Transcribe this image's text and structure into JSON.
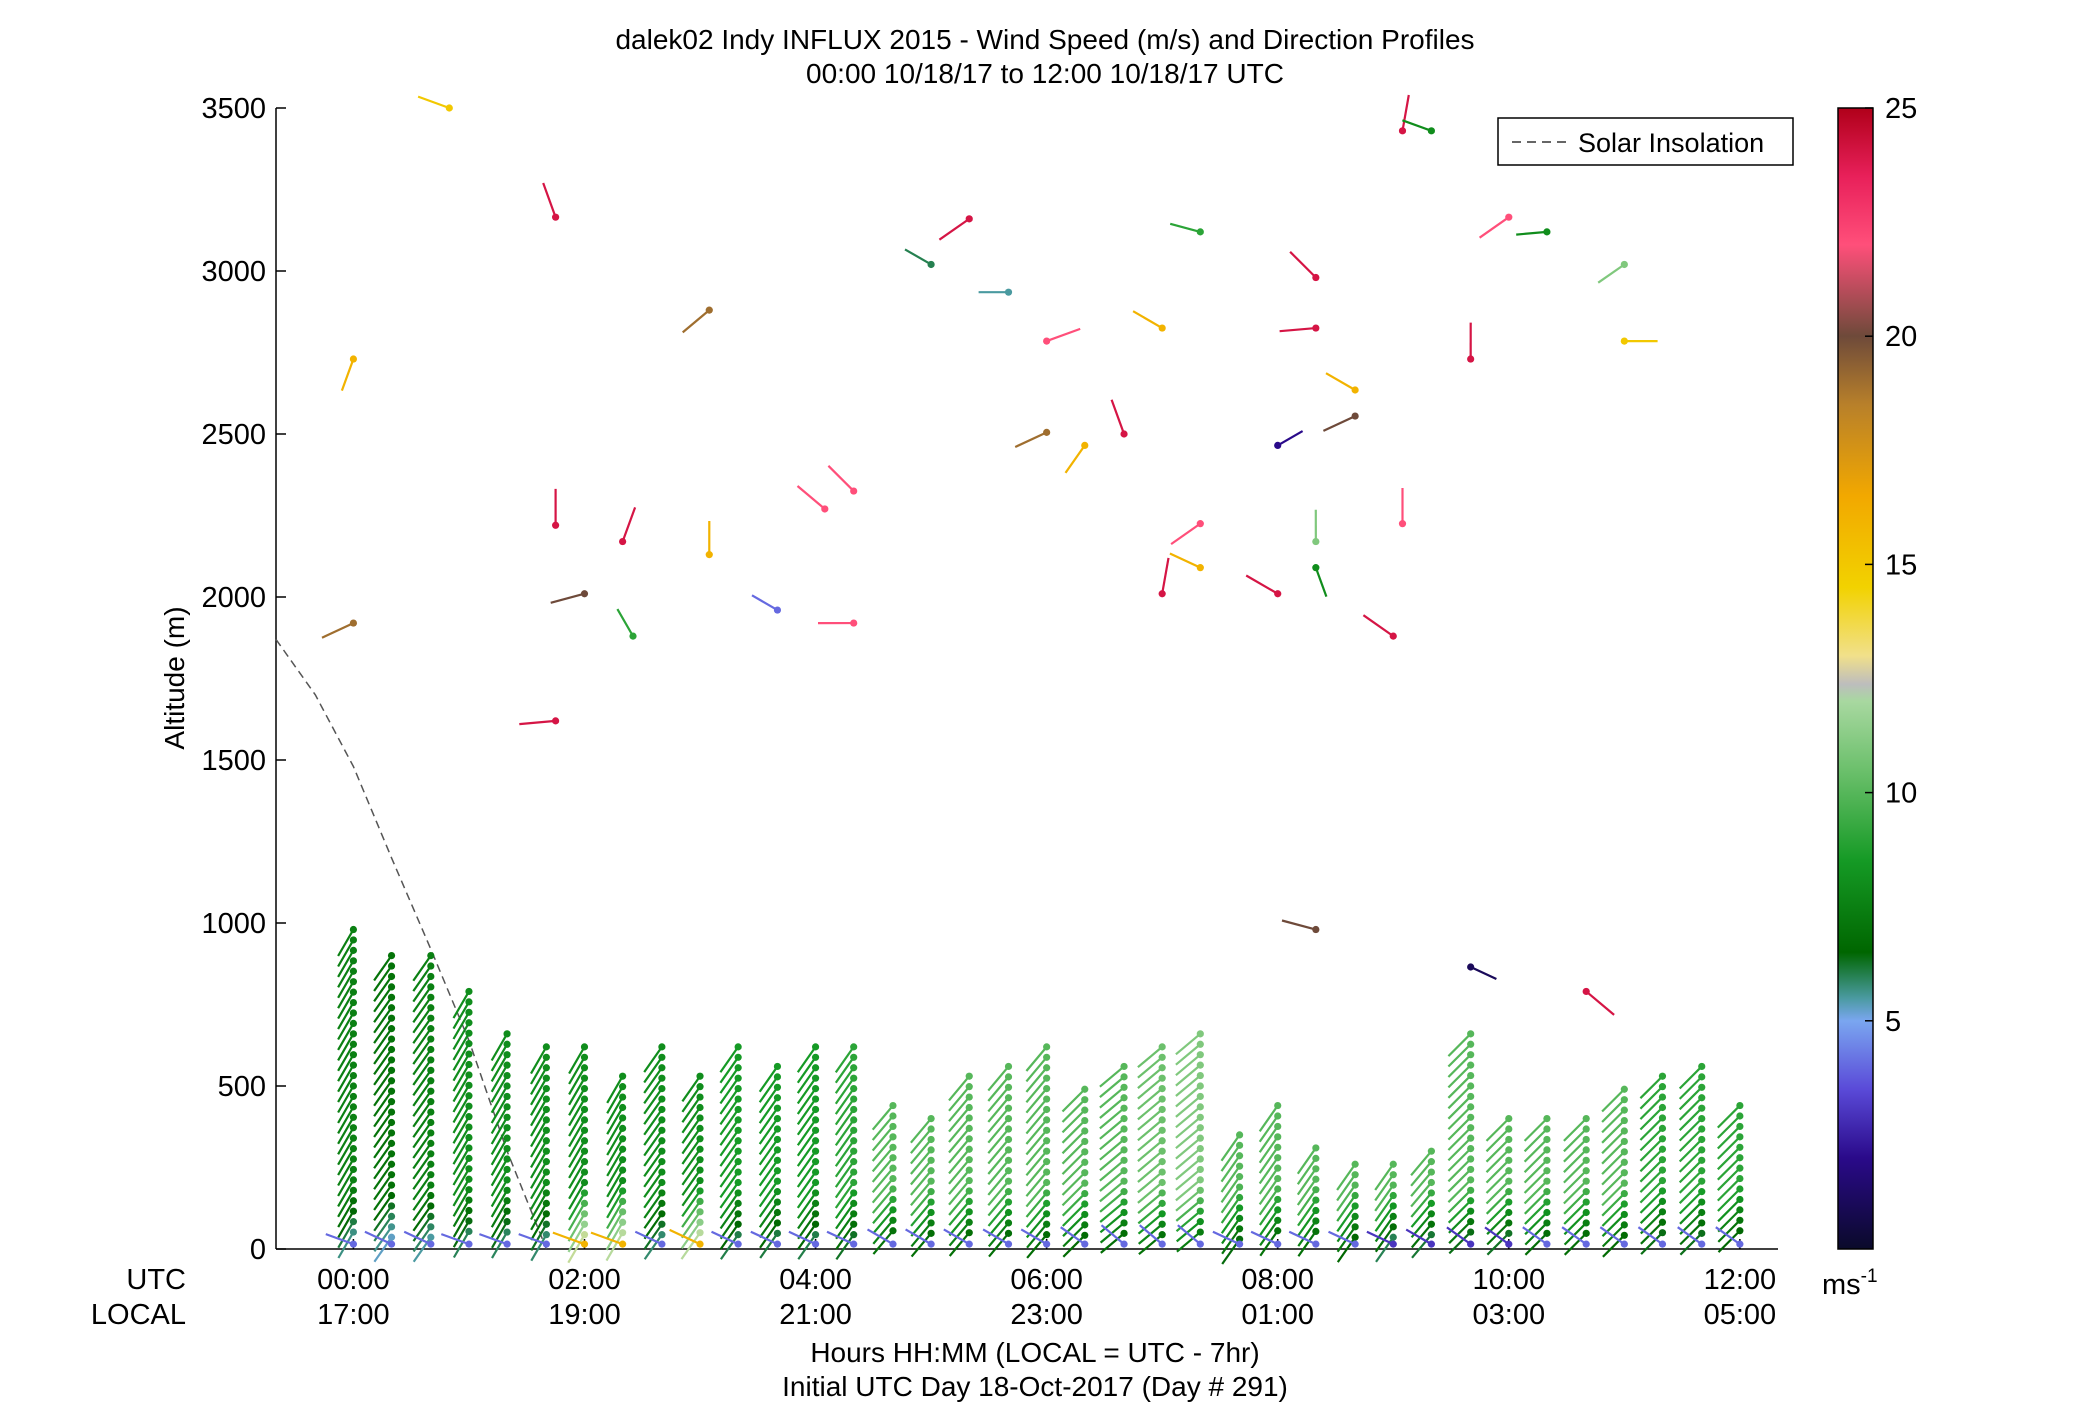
{
  "chart_data": {
    "type": "scatter",
    "title": "dalek02 Indy INFLUX 2015 - Wind Speed (m/s) and Direction Profiles",
    "subtitle": "00:00 10/18/17 to 12:00 10/18/17  UTC",
    "ylabel": "Altitude (m)",
    "xlabel": "Hours HH:MM  (LOCAL = UTC - 7hr)",
    "xlabel2": "Initial UTC Day 18-Oct-2017 (Day # 291)",
    "ylim": [
      0,
      3500
    ],
    "xlim_hours_utc": [
      -0.67,
      12.33
    ],
    "yticks": [
      0,
      500,
      1000,
      1500,
      2000,
      2500,
      3000,
      3500
    ],
    "xtick_row_labels": [
      "UTC",
      "LOCAL"
    ],
    "xticks_utc": [
      "00:00",
      "02:00",
      "04:00",
      "06:00",
      "08:00",
      "10:00",
      "12:00"
    ],
    "xticks_local": [
      "17:00",
      "19:00",
      "21:00",
      "23:00",
      "01:00",
      "03:00",
      "05:00"
    ],
    "xticks_hours": [
      0,
      2,
      4,
      6,
      8,
      10,
      12
    ],
    "legend": {
      "label": "Solar Insolation",
      "position": "top-right"
    },
    "colorbar": {
      "range": [
        0,
        25
      ],
      "ticks": [
        5,
        10,
        15,
        20,
        25
      ],
      "unit": "ms",
      "unit_exponent": "-1"
    },
    "solar_insolation": {
      "x": [
        -0.67,
        -0.33,
        0.0,
        0.33,
        0.67,
        1.0,
        1.33,
        1.67
      ],
      "y": [
        1870,
        1700,
        1480,
        1200,
        920,
        640,
        300,
        0
      ]
    },
    "series": [
      {
        "hour": 0.0,
        "speed": 7.5,
        "direction": 210,
        "top": 980,
        "spacing": 32,
        "surface_speed": 4
      },
      {
        "hour": 0.33,
        "speed": 7,
        "direction": 215,
        "top": 900,
        "spacing": 32,
        "surface_speed": 4
      },
      {
        "hour": 0.67,
        "speed": 7.5,
        "direction": 215,
        "top": 900,
        "spacing": 32,
        "surface_speed": 4
      },
      {
        "hour": 1.0,
        "speed": 8,
        "direction": 210,
        "top": 790,
        "spacing": 32,
        "surface_speed": 4
      },
      {
        "hour": 1.33,
        "speed": 8,
        "direction": 210,
        "top": 660,
        "spacing": 32,
        "surface_speed": 4
      },
      {
        "hour": 1.67,
        "speed": 8,
        "direction": 210,
        "top": 620,
        "spacing": 32,
        "surface_speed": 4
      },
      {
        "hour": 2.0,
        "speed": 8,
        "direction": 210,
        "top": 620,
        "spacing": 32,
        "surface_speed": 16
      },
      {
        "hour": 2.33,
        "speed": 8,
        "direction": 210,
        "top": 530,
        "spacing": 32,
        "surface_speed": 16
      },
      {
        "hour": 2.67,
        "speed": 8,
        "direction": 215,
        "top": 620,
        "spacing": 32,
        "surface_speed": 4
      },
      {
        "hour": 3.0,
        "speed": 8,
        "direction": 215,
        "top": 530,
        "spacing": 32,
        "surface_speed": 16
      },
      {
        "hour": 3.33,
        "speed": 8.5,
        "direction": 215,
        "top": 620,
        "spacing": 32,
        "surface_speed": 4
      },
      {
        "hour": 3.67,
        "speed": 8.5,
        "direction": 215,
        "top": 560,
        "spacing": 32,
        "surface_speed": 4
      },
      {
        "hour": 4.0,
        "speed": 8.5,
        "direction": 215,
        "top": 620,
        "spacing": 32,
        "surface_speed": 4
      },
      {
        "hour": 4.33,
        "speed": 9,
        "direction": 215,
        "top": 620,
        "spacing": 32,
        "surface_speed": 4
      },
      {
        "hour": 4.67,
        "speed": 10,
        "direction": 220,
        "top": 440,
        "spacing": 32,
        "surface_speed": 4
      },
      {
        "hour": 5.0,
        "speed": 10,
        "direction": 220,
        "top": 400,
        "spacing": 32,
        "surface_speed": 4
      },
      {
        "hour": 5.33,
        "speed": 10,
        "direction": 220,
        "top": 530,
        "spacing": 32,
        "surface_speed": 4
      },
      {
        "hour": 5.67,
        "speed": 10,
        "direction": 220,
        "top": 560,
        "spacing": 32,
        "surface_speed": 4
      },
      {
        "hour": 6.0,
        "speed": 10,
        "direction": 220,
        "top": 620,
        "spacing": 32,
        "surface_speed": 4
      },
      {
        "hour": 6.33,
        "speed": 10,
        "direction": 225,
        "top": 490,
        "spacing": 32,
        "surface_speed": 4
      },
      {
        "hour": 6.67,
        "speed": 10,
        "direction": 230,
        "top": 560,
        "spacing": 32,
        "surface_speed": 4
      },
      {
        "hour": 7.0,
        "speed": 10.5,
        "direction": 230,
        "top": 620,
        "spacing": 32,
        "surface_speed": 4
      },
      {
        "hour": 7.33,
        "speed": 11,
        "direction": 230,
        "top": 660,
        "spacing": 32,
        "surface_speed": 4
      },
      {
        "hour": 7.67,
        "speed": 10,
        "direction": 215,
        "top": 350,
        "spacing": 32,
        "surface_speed": 4
      },
      {
        "hour": 8.0,
        "speed": 10,
        "direction": 215,
        "top": 440,
        "spacing": 32,
        "surface_speed": 4
      },
      {
        "hour": 8.33,
        "speed": 10,
        "direction": 215,
        "top": 310,
        "spacing": 32,
        "surface_speed": 4
      },
      {
        "hour": 8.67,
        "speed": 10,
        "direction": 215,
        "top": 260,
        "spacing": 32,
        "surface_speed": 4
      },
      {
        "hour": 9.0,
        "speed": 10,
        "direction": 215,
        "top": 260,
        "spacing": 32,
        "surface_speed": 3
      },
      {
        "hour": 9.33,
        "speed": 10,
        "direction": 220,
        "top": 300,
        "spacing": 32,
        "surface_speed": 3
      },
      {
        "hour": 9.67,
        "speed": 10,
        "direction": 225,
        "top": 660,
        "spacing": 32,
        "surface_speed": 3
      },
      {
        "hour": 10.0,
        "speed": 10,
        "direction": 225,
        "top": 400,
        "spacing": 32,
        "surface_speed": 3
      },
      {
        "hour": 10.33,
        "speed": 10,
        "direction": 225,
        "top": 400,
        "spacing": 32,
        "surface_speed": 4
      },
      {
        "hour": 10.67,
        "speed": 10,
        "direction": 225,
        "top": 400,
        "spacing": 32,
        "surface_speed": 4
      },
      {
        "hour": 11.0,
        "speed": 10,
        "direction": 225,
        "top": 490,
        "spacing": 32,
        "surface_speed": 4
      },
      {
        "hour": 11.33,
        "speed": 9,
        "direction": 225,
        "top": 530,
        "spacing": 32,
        "surface_speed": 4
      },
      {
        "hour": 11.67,
        "speed": 9,
        "direction": 225,
        "top": 560,
        "spacing": 32,
        "surface_speed": 4
      },
      {
        "hour": 12.0,
        "speed": 9,
        "direction": 225,
        "top": 440,
        "spacing": 32,
        "surface_speed": 4
      }
    ],
    "outliers": [
      {
        "x": 0.0,
        "y": 2730,
        "speed": 16,
        "direction": 200
      },
      {
        "x": 0.0,
        "y": 1920,
        "speed": 19,
        "direction": 245
      },
      {
        "x": 0.83,
        "y": 3500,
        "speed": 15,
        "direction": 290
      },
      {
        "x": 1.75,
        "y": 3165,
        "speed": 24,
        "direction": 340
      },
      {
        "x": 1.75,
        "y": 2220,
        "speed": 24,
        "direction": 0
      },
      {
        "x": 1.75,
        "y": 1620,
        "speed": 24,
        "direction": 265
      },
      {
        "x": 2.0,
        "y": 2010,
        "speed": 20,
        "direction": 255
      },
      {
        "x": 2.33,
        "y": 2170,
        "speed": 24,
        "direction": 20
      },
      {
        "x": 2.42,
        "y": 1880,
        "speed": 9,
        "direction": 330
      },
      {
        "x": 3.08,
        "y": 2880,
        "speed": 19,
        "direction": 230
      },
      {
        "x": 3.08,
        "y": 2130,
        "speed": 16,
        "direction": 0
      },
      {
        "x": 3.67,
        "y": 1960,
        "speed": 4,
        "direction": 300
      },
      {
        "x": 4.08,
        "y": 2270,
        "speed": 22,
        "direction": 310
      },
      {
        "x": 4.33,
        "y": 2325,
        "speed": 22,
        "direction": 315
      },
      {
        "x": 4.33,
        "y": 1920,
        "speed": 22,
        "direction": 270
      },
      {
        "x": 5.0,
        "y": 3020,
        "speed": 6,
        "direction": 300
      },
      {
        "x": 5.33,
        "y": 3160,
        "speed": 24,
        "direction": 235
      },
      {
        "x": 5.67,
        "y": 2935,
        "speed": 5.5,
        "direction": 270
      },
      {
        "x": 6.0,
        "y": 2785,
        "speed": 22,
        "direction": 70
      },
      {
        "x": 6.0,
        "y": 2505,
        "speed": 19,
        "direction": 245
      },
      {
        "x": 6.33,
        "y": 2465,
        "speed": 16,
        "direction": 215
      },
      {
        "x": 6.67,
        "y": 2500,
        "speed": 24,
        "direction": 340
      },
      {
        "x": 7.0,
        "y": 2825,
        "speed": 16,
        "direction": 300
      },
      {
        "x": 7.33,
        "y": 3120,
        "speed": 9,
        "direction": 285
      },
      {
        "x": 7.33,
        "y": 2225,
        "speed": 22,
        "direction": 235
      },
      {
        "x": 7.33,
        "y": 2090,
        "speed": 16,
        "direction": 295
      },
      {
        "x": 7.0,
        "y": 2010,
        "speed": 24,
        "direction": 10
      },
      {
        "x": 8.0,
        "y": 2465,
        "speed": 2,
        "direction": 60
      },
      {
        "x": 8.0,
        "y": 2010,
        "speed": 24,
        "direction": 300
      },
      {
        "x": 8.33,
        "y": 2980,
        "speed": 24,
        "direction": 315
      },
      {
        "x": 8.33,
        "y": 2825,
        "speed": 24,
        "direction": 265
      },
      {
        "x": 8.33,
        "y": 2170,
        "speed": 11,
        "direction": 0
      },
      {
        "x": 8.33,
        "y": 2090,
        "speed": 8,
        "direction": 160
      },
      {
        "x": 8.33,
        "y": 980,
        "speed": 20,
        "direction": 285
      },
      {
        "x": 8.67,
        "y": 2635,
        "speed": 16,
        "direction": 300
      },
      {
        "x": 8.67,
        "y": 2555,
        "speed": 20,
        "direction": 245
      },
      {
        "x": 9.0,
        "y": 1880,
        "speed": 24,
        "direction": 305
      },
      {
        "x": 9.08,
        "y": 3430,
        "speed": 24,
        "direction": 10
      },
      {
        "x": 9.33,
        "y": 3430,
        "speed": 8,
        "direction": 290
      },
      {
        "x": 9.08,
        "y": 2225,
        "speed": 22,
        "direction": 0
      },
      {
        "x": 9.67,
        "y": 2730,
        "speed": 24,
        "direction": 0
      },
      {
        "x": 9.67,
        "y": 865,
        "speed": 1,
        "direction": 115
      },
      {
        "x": 10.0,
        "y": 3165,
        "speed": 22,
        "direction": 235
      },
      {
        "x": 10.33,
        "y": 3120,
        "speed": 8,
        "direction": 265
      },
      {
        "x": 11.0,
        "y": 2785,
        "speed": 15,
        "direction": 90
      },
      {
        "x": 11.0,
        "y": 3020,
        "speed": 11,
        "direction": 235
      },
      {
        "x": 10.67,
        "y": 790,
        "speed": 24,
        "direction": 130
      }
    ]
  }
}
